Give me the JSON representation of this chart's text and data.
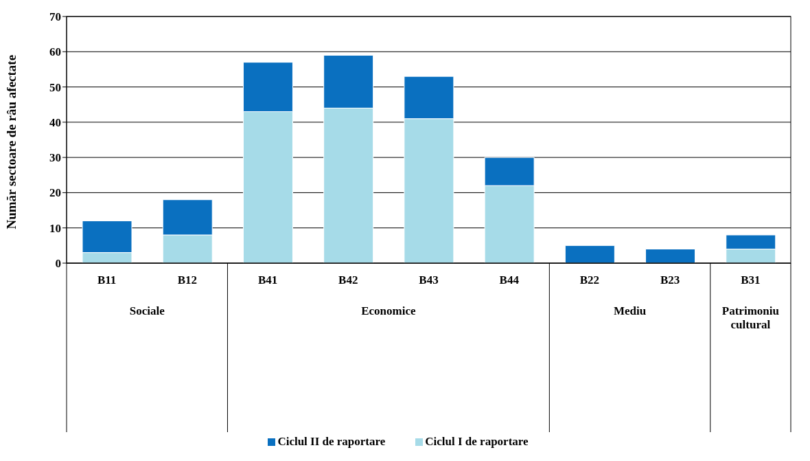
{
  "chart_data": {
    "type": "bar",
    "stacked": true,
    "ylabel": "Număr sectoare de râu afectate",
    "categories": [
      "B11",
      "B12",
      "B41",
      "B42",
      "B43",
      "B44",
      "B22",
      "B23",
      "B31"
    ],
    "series": [
      {
        "name": "Ciclul I de raportare",
        "color": "#a6dbe8",
        "values": [
          3,
          8,
          43,
          44,
          41,
          22,
          0,
          0,
          4
        ]
      },
      {
        "name": "Ciclul II de raportare",
        "color": "#0a70c0",
        "values": [
          9,
          10,
          14,
          15,
          12,
          8,
          5,
          4,
          4
        ]
      }
    ],
    "annotations": [
      "Sociale",
      "Economice",
      "Mediu",
      "Patrimoniu cultural"
    ],
    "ylim": [
      0,
      70
    ],
    "yticks": [
      0,
      10,
      20,
      30,
      40,
      50,
      60,
      70
    ],
    "grid": "y",
    "legend": "bottom"
  }
}
